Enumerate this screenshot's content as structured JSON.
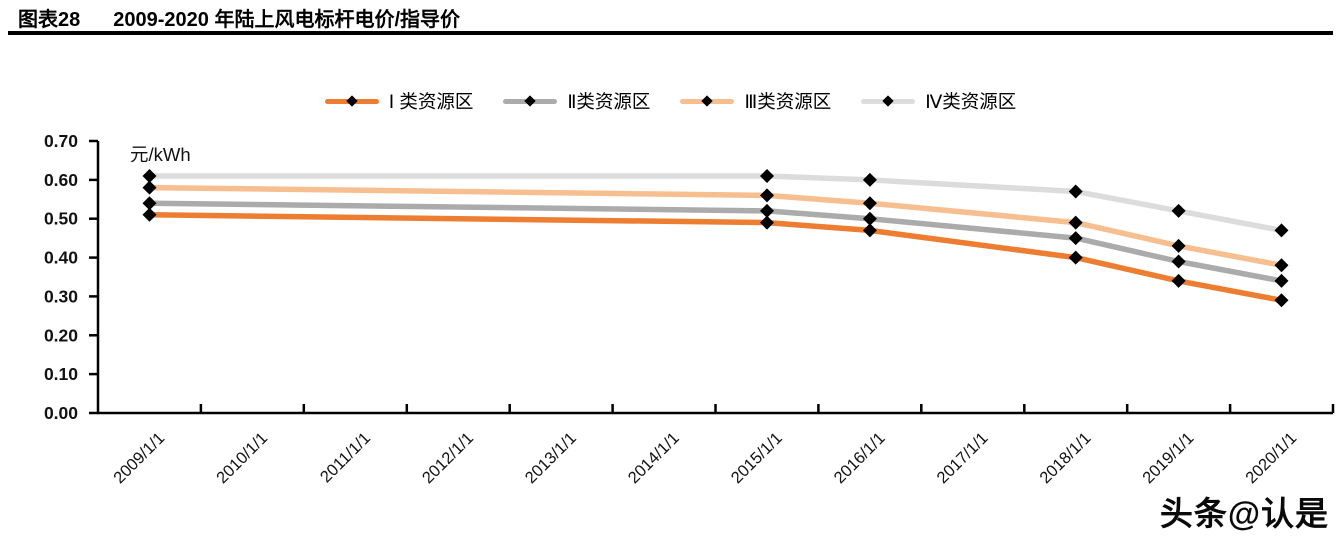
{
  "header": {
    "figure_label": "图表28",
    "title": "2009-2020 年陆上风电标杆电价/指导价"
  },
  "watermark": {
    "text": "头条@认是"
  },
  "chart_data": {
    "type": "line",
    "title": "2009-2020 年陆上风电标杆电价/指导价",
    "unit_label": "元/kWh",
    "xlabel": "",
    "ylabel": "元/kWh",
    "ylim": [
      0,
      0.7
    ],
    "y_tick_step": 0.1,
    "y_tick_labels": [
      "0.00",
      "0.10",
      "0.20",
      "0.30",
      "0.40",
      "0.50",
      "0.60",
      "0.70"
    ],
    "x_tick_labels": [
      "2009/1/1",
      "2010/1/1",
      "2011/1/1",
      "2012/1/1",
      "2013/1/1",
      "2014/1/1",
      "2015/1/1",
      "2016/1/1",
      "2017/1/1",
      "2018/1/1",
      "2019/1/1",
      "2020/1/1"
    ],
    "start_year": 2009,
    "point_years": [
      2009,
      2015,
      2016,
      2018,
      2019,
      2020
    ],
    "series": [
      {
        "name": "Ⅰ 类资源区",
        "color": "#ED7D31",
        "values": [
          0.51,
          0.49,
          0.47,
          0.4,
          0.34,
          0.29
        ]
      },
      {
        "name": "Ⅱ类资源区",
        "color": "#ABABAB",
        "values": [
          0.54,
          0.52,
          0.5,
          0.45,
          0.39,
          0.34
        ]
      },
      {
        "name": "Ⅲ类资源区",
        "color": "#F7BE90",
        "values": [
          0.58,
          0.56,
          0.54,
          0.49,
          0.43,
          0.38
        ]
      },
      {
        "name": "Ⅳ类资源区",
        "color": "#DCDCDC",
        "values": [
          0.61,
          0.61,
          0.6,
          0.57,
          0.52,
          0.47
        ]
      }
    ],
    "marker": {
      "shape": "diamond",
      "color": "#000000"
    },
    "legend_position": "top-center",
    "grid": false
  }
}
